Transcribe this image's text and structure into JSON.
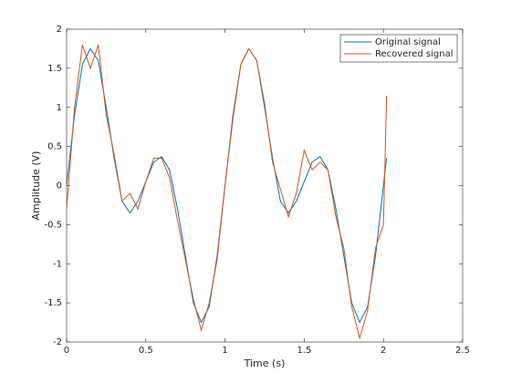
{
  "chart_data": {
    "type": "line",
    "xlabel": "Time (s)",
    "ylabel": "Amplitude (V)",
    "x": [
      0,
      0.05,
      0.1,
      0.15,
      0.2,
      0.25,
      0.3,
      0.35,
      0.4,
      0.45,
      0.5,
      0.55,
      0.6,
      0.65,
      0.7,
      0.75,
      0.8,
      0.85,
      0.9,
      0.95,
      1,
      1.05,
      1.1,
      1.15,
      1.2,
      1.25,
      1.3,
      1.35,
      1.4,
      1.45,
      1.5,
      1.55,
      1.6,
      1.65,
      1.7,
      1.75,
      1.8,
      1.85,
      1.9,
      1.95,
      2,
      2.02
    ],
    "series": [
      {
        "name": "Original signal",
        "color": "#0072bd",
        "values": [
          0,
          0.9,
          1.55,
          1.75,
          1.6,
          1.0,
          0.35,
          -0.2,
          -0.35,
          -0.2,
          0.05,
          0.3,
          0.37,
          0.2,
          -0.3,
          -0.9,
          -1.5,
          -1.75,
          -1.55,
          -0.9,
          0,
          0.9,
          1.55,
          1.75,
          1.6,
          1.0,
          0.35,
          -0.2,
          -0.35,
          -0.2,
          0.05,
          0.3,
          0.37,
          0.2,
          -0.3,
          -0.9,
          -1.5,
          -1.75,
          -1.55,
          -0.9,
          0,
          0.35
        ]
      },
      {
        "name": "Recovered signal",
        "color": "#d95319",
        "values": [
          -0.3,
          1.0,
          1.8,
          1.5,
          1.8,
          0.9,
          0.4,
          -0.2,
          -0.1,
          -0.3,
          0.05,
          0.35,
          0.35,
          0.1,
          -0.45,
          -0.95,
          -1.45,
          -1.85,
          -1.5,
          -0.95,
          0,
          0.85,
          1.55,
          1.75,
          1.6,
          1.05,
          0.3,
          -0.05,
          -0.4,
          -0.1,
          0.45,
          0.2,
          0.3,
          0.2,
          -0.4,
          -0.8,
          -1.55,
          -1.95,
          -1.6,
          -0.8,
          -0.5,
          1.15
        ]
      }
    ],
    "xlim": [
      0,
      2.5
    ],
    "xticks": [
      0,
      0.5,
      1,
      1.5,
      2,
      2.5
    ],
    "ylim": [
      -2,
      2
    ],
    "yticks": [
      -2,
      -1.5,
      -1,
      -0.5,
      0,
      0.5,
      1,
      1.5,
      2
    ],
    "legend": "northeast"
  }
}
